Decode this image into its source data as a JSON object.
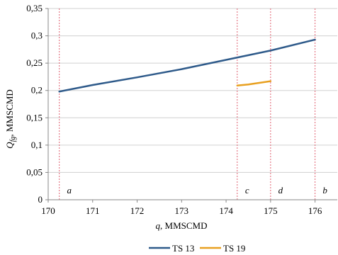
{
  "chart_data": {
    "type": "line",
    "xlabel_var": "q",
    "xlabel_unit": ", MMSCMD",
    "ylabel_var": "Q",
    "ylabel_sub": "fg",
    "ylabel_unit": ", MMSCMD",
    "xlim": [
      170,
      176.5
    ],
    "ylim": [
      0,
      0.35
    ],
    "x_ticks": [
      170,
      171,
      172,
      173,
      174,
      175,
      176
    ],
    "x_tick_labels": [
      "170",
      "171",
      "172",
      "173",
      "174",
      "175",
      "176"
    ],
    "y_ticks": [
      0,
      0.05,
      0.1,
      0.15,
      0.2,
      0.25,
      0.3,
      0.35
    ],
    "y_tick_labels": [
      "0",
      "0,05",
      "0,1",
      "0,15",
      "0,2",
      "0,25",
      "0,3",
      "0,35"
    ],
    "grid": "horizontal",
    "legend_position": "bottom",
    "series": [
      {
        "name": "TS 13",
        "color": "#2e5a8a",
        "x": [
          170.25,
          171,
          172,
          173,
          174,
          175,
          176
        ],
        "y": [
          0.198,
          0.21,
          0.224,
          0.239,
          0.256,
          0.273,
          0.293
        ]
      },
      {
        "name": "TS 19",
        "color": "#e8a020",
        "x": [
          174.25,
          174.5,
          175
        ],
        "y": [
          0.209,
          0.211,
          0.217
        ]
      }
    ],
    "markers": [
      {
        "x": 170.25,
        "label": "a"
      },
      {
        "x": 176,
        "label": "b"
      },
      {
        "x": 174.25,
        "label": "c"
      },
      {
        "x": 175,
        "label": "d"
      }
    ],
    "marker_color": "#e06070"
  }
}
